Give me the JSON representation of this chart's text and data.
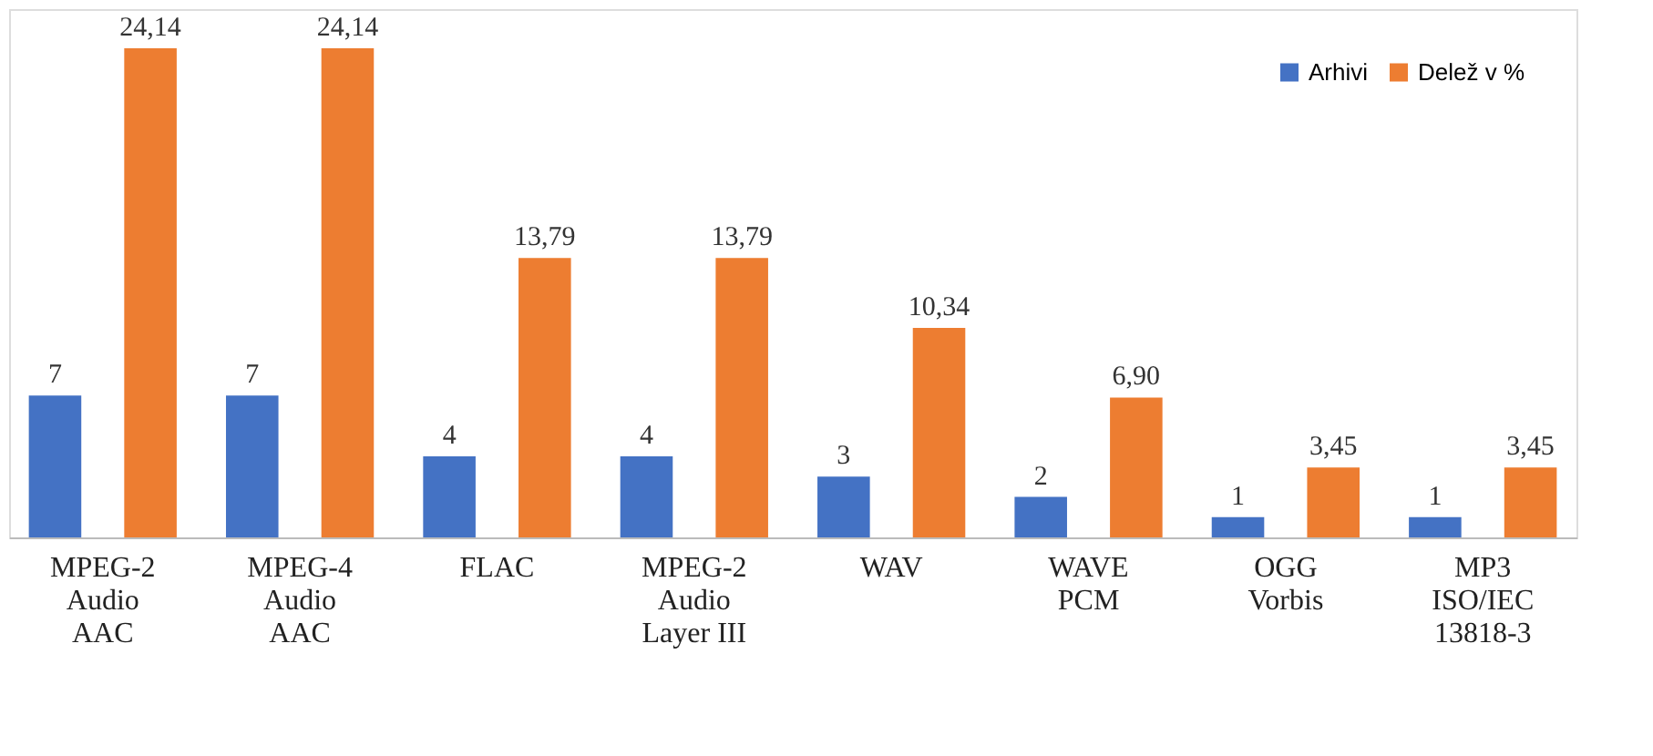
{
  "chart_data": {
    "type": "bar",
    "categories": [
      "MPEG-2\nAudio\nAAC",
      "MPEG-4\nAudio\nAAC",
      "FLAC",
      "MPEG-2\nAudio\nLayer III",
      "WAV",
      "WAVE\nPCM",
      "OGG\nVorbis",
      "MP3\nISO/IEC\n13818-3"
    ],
    "series": [
      {
        "name": "Arhivi",
        "color": "#4472c4",
        "values": [
          7,
          7,
          4,
          4,
          3,
          2,
          1,
          1
        ],
        "value_labels": [
          "7",
          "7",
          "4",
          "4",
          "3",
          "2",
          "1",
          "1"
        ]
      },
      {
        "name": "Delež v %",
        "color": "#ed7d31",
        "values": [
          24.14,
          24.14,
          13.79,
          13.79,
          10.34,
          6.9,
          3.45,
          3.45
        ],
        "value_labels": [
          "24,14",
          "24,14",
          "13,79",
          "13,79",
          "10,34",
          "6,90",
          "3,45",
          "3,45"
        ]
      }
    ],
    "legend": "top right",
    "grid": false
  }
}
